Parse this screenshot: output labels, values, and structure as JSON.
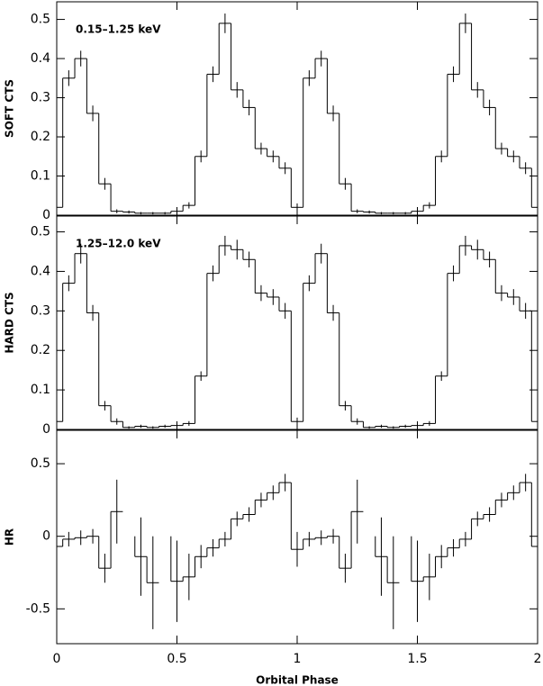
{
  "chart_data": [
    {
      "type": "step",
      "ylabel": "SOFT CTS",
      "annotation": "0.15–1.25 keV",
      "x": [
        0,
        0.05,
        0.1,
        0.15,
        0.2,
        0.25,
        0.3,
        0.35,
        0.4,
        0.45,
        0.5,
        0.55,
        0.6,
        0.65,
        0.7,
        0.75,
        0.8,
        0.85,
        0.9,
        0.95,
        1,
        1.05,
        1.1,
        1.15,
        1.2,
        1.25,
        1.3,
        1.35,
        1.4,
        1.45,
        1.5,
        1.55,
        1.6,
        1.65,
        1.7,
        1.75,
        1.8,
        1.85,
        1.9,
        1.95,
        2
      ],
      "values": [
        0.02,
        0.35,
        0.4,
        0.26,
        0.08,
        0.01,
        0.008,
        0.005,
        0.005,
        0.005,
        0.01,
        0.025,
        0.15,
        0.36,
        0.49,
        0.32,
        0.275,
        0.17,
        0.15,
        0.12,
        0.02,
        0.35,
        0.4,
        0.26,
        0.08,
        0.01,
        0.008,
        0.005,
        0.005,
        0.005,
        0.01,
        0.025,
        0.15,
        0.36,
        0.49,
        0.32,
        0.275,
        0.17,
        0.15,
        0.12,
        0.02
      ],
      "errors": [
        0.01,
        0.02,
        0.02,
        0.02,
        0.015,
        0.005,
        0.004,
        0.003,
        0.003,
        0.003,
        0.005,
        0.008,
        0.015,
        0.02,
        0.025,
        0.02,
        0.02,
        0.015,
        0.015,
        0.015,
        0.01,
        0.02,
        0.02,
        0.02,
        0.015,
        0.005,
        0.004,
        0.003,
        0.003,
        0.003,
        0.005,
        0.008,
        0.015,
        0.02,
        0.025,
        0.02,
        0.02,
        0.015,
        0.015,
        0.015,
        0.01
      ],
      "xlim": [
        0,
        2
      ],
      "xticks": [
        0,
        0.5,
        1,
        1.5,
        2
      ],
      "ylim": [
        0,
        0.545
      ],
      "yticks": [
        0,
        0.1,
        0.2,
        0.3,
        0.4,
        0.5
      ]
    },
    {
      "type": "step",
      "ylabel": "HARD CTS",
      "annotation": "1.25–12.0 keV",
      "x": [
        0,
        0.05,
        0.1,
        0.15,
        0.2,
        0.25,
        0.3,
        0.35,
        0.4,
        0.45,
        0.5,
        0.55,
        0.6,
        0.65,
        0.7,
        0.75,
        0.8,
        0.85,
        0.9,
        0.95,
        1,
        1.05,
        1.1,
        1.15,
        1.2,
        1.25,
        1.3,
        1.35,
        1.4,
        1.45,
        1.5,
        1.55,
        1.6,
        1.65,
        1.7,
        1.75,
        1.8,
        1.85,
        1.9,
        1.95,
        2
      ],
      "values": [
        0.02,
        0.37,
        0.445,
        0.295,
        0.06,
        0.02,
        0.005,
        0.008,
        0.005,
        0.008,
        0.01,
        0.015,
        0.135,
        0.395,
        0.465,
        0.455,
        0.43,
        0.345,
        0.335,
        0.3,
        0.02,
        0.37,
        0.445,
        0.295,
        0.06,
        0.02,
        0.005,
        0.008,
        0.005,
        0.008,
        0.01,
        0.015,
        0.135,
        0.395,
        0.465,
        0.455,
        0.43,
        0.345,
        0.335,
        0.3,
        0.02
      ],
      "errors": [
        0.01,
        0.02,
        0.025,
        0.02,
        0.012,
        0.008,
        0.003,
        0.004,
        0.003,
        0.004,
        0.005,
        0.006,
        0.012,
        0.02,
        0.025,
        0.025,
        0.02,
        0.02,
        0.02,
        0.02,
        0.01,
        0.02,
        0.025,
        0.02,
        0.012,
        0.008,
        0.003,
        0.004,
        0.003,
        0.004,
        0.005,
        0.006,
        0.012,
        0.02,
        0.025,
        0.025,
        0.02,
        0.02,
        0.02,
        0.02,
        0.01
      ],
      "xlim": [
        0,
        2
      ],
      "xticks": [
        0,
        0.5,
        1,
        1.5,
        2
      ],
      "ylim": [
        0,
        0.54
      ],
      "yticks": [
        0,
        0.1,
        0.2,
        0.3,
        0.4,
        0.5
      ]
    },
    {
      "type": "step",
      "ylabel": "HR",
      "xlabel": "Orbital Phase",
      "x": [
        0,
        0.05,
        0.1,
        0.15,
        0.2,
        0.25,
        0.3,
        0.35,
        0.4,
        0.45,
        0.5,
        0.55,
        0.6,
        0.65,
        0.7,
        0.75,
        0.8,
        0.85,
        0.9,
        0.95,
        1,
        1.05,
        1.1,
        1.15,
        1.2,
        1.25,
        1.3,
        1.35,
        1.4,
        1.45,
        1.5,
        1.55,
        1.6,
        1.65,
        1.7,
        1.75,
        1.8,
        1.85,
        1.9,
        1.95,
        2
      ],
      "values": [
        -0.07,
        -0.02,
        -0.01,
        0,
        -0.22,
        0.17,
        null,
        -0.14,
        -0.32,
        null,
        -0.31,
        -0.28,
        -0.14,
        -0.08,
        -0.02,
        0.12,
        0.15,
        0.25,
        0.3,
        0.37,
        -0.09,
        -0.02,
        -0.01,
        0,
        -0.22,
        0.17,
        null,
        -0.14,
        -0.32,
        null,
        -0.31,
        -0.28,
        -0.14,
        -0.08,
        -0.02,
        0.12,
        0.15,
        0.25,
        0.3,
        0.37,
        -0.07
      ],
      "errors": [
        0.06,
        0.05,
        0.05,
        0.05,
        0.1,
        0.22,
        null,
        0.27,
        0.32,
        null,
        0.28,
        0.16,
        0.08,
        0.06,
        0.05,
        0.05,
        0.05,
        0.05,
        0.05,
        0.06,
        0.12,
        0.05,
        0.05,
        0.05,
        0.1,
        0.22,
        null,
        0.27,
        0.32,
        null,
        0.28,
        0.16,
        0.08,
        0.06,
        0.05,
        0.05,
        0.05,
        0.05,
        0.05,
        0.06,
        0.06
      ],
      "xlim": [
        0,
        2
      ],
      "xticks": [
        0,
        0.5,
        1,
        1.5,
        2
      ],
      "ylim": [
        -0.74,
        0.73
      ],
      "yticks": [
        -0.5,
        0,
        0.5
      ]
    }
  ]
}
